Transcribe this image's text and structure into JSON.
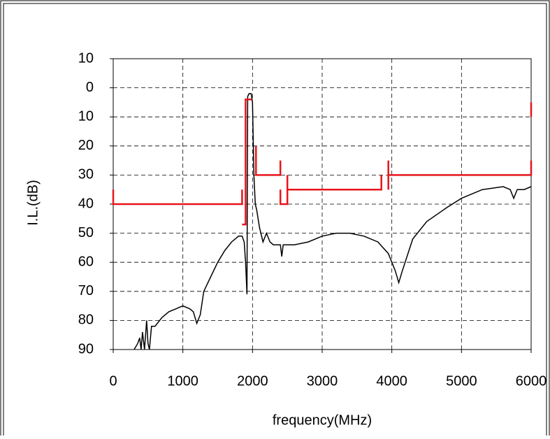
{
  "chart_data": {
    "type": "line",
    "x_label": "frequency(MHz)",
    "y_label": "I.L.(dB)",
    "xlim": [
      0,
      6000
    ],
    "xticks": [
      0,
      1000,
      2000,
      3000,
      4000,
      5000,
      6000
    ],
    "ylim": [
      -10,
      90
    ],
    "y_inverted": true,
    "yticks": [
      {
        "value": -10,
        "label": "10"
      },
      0,
      10,
      20,
      30,
      40,
      50,
      60,
      70,
      80,
      90
    ],
    "grid": true,
    "series": [
      {
        "color": "#000000",
        "x": [
          300,
          350,
          380,
          400,
          420,
          450,
          480,
          500,
          520,
          550,
          600,
          700,
          800,
          900,
          1000,
          1100,
          1150,
          1200,
          1250,
          1300,
          1400,
          1500,
          1600,
          1700,
          1800,
          1850,
          1880,
          1900,
          1920,
          1930,
          1950,
          1980,
          2000,
          2020,
          2040,
          2060,
          2100,
          2150,
          2200,
          2250,
          2300,
          2400,
          2420,
          2440,
          2600,
          2800,
          3000,
          3200,
          3400,
          3600,
          3800,
          3950,
          4050,
          4100,
          4150,
          4300,
          4500,
          4800,
          5000,
          5300,
          5600,
          5700,
          5750,
          5800,
          5900,
          6000
        ],
        "values": [
          90,
          88,
          86,
          90,
          84,
          90,
          80,
          88,
          90,
          82,
          82,
          79,
          77,
          76,
          75,
          76,
          77,
          81,
          78,
          70,
          65,
          60,
          56,
          53,
          51,
          51,
          53,
          60,
          71,
          3,
          2,
          2,
          5,
          30,
          40,
          42,
          48,
          53,
          50,
          53,
          54,
          54,
          58,
          54,
          54,
          53,
          51,
          50,
          50,
          51,
          53,
          57,
          63,
          67,
          63,
          52,
          46,
          41,
          38,
          35,
          34,
          35,
          38,
          35,
          35,
          34
        ]
      },
      {
        "color": "#e8141b",
        "x": [
          0,
          0,
          1850,
          1850,
          1850,
          1850,
          1900,
          1900,
          1990,
          1990,
          2050,
          2050,
          2400,
          2400,
          2400,
          2400,
          2400,
          2500,
          2500,
          2500,
          2500,
          3850,
          3850,
          3850,
          3950,
          3950,
          3950,
          6000,
          6000,
          6000,
          6000,
          6000
        ],
        "values": [
          35,
          40,
          40,
          35,
          null,
          47,
          47,
          4,
          4,
          null,
          20,
          30,
          30,
          25,
          null,
          35,
          40,
          40,
          30,
          null,
          35,
          35,
          30,
          null,
          35,
          25,
          30,
          30,
          25,
          null,
          5,
          10
        ]
      }
    ]
  }
}
